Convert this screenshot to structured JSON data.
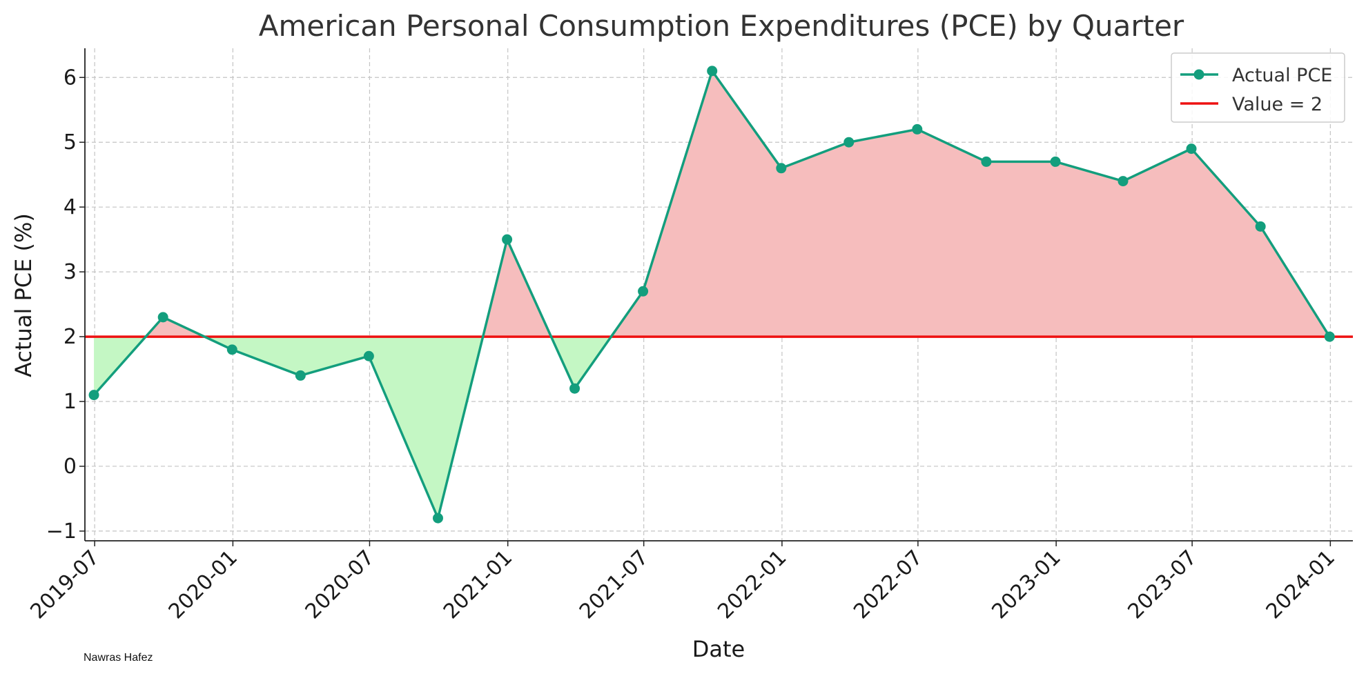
{
  "chart_data": {
    "type": "line",
    "title": "American Personal Consumption Expenditures (PCE) by Quarter",
    "xlabel": "Date",
    "ylabel": "Actual PCE (%)",
    "x": [
      "2019-06-30",
      "2019-09-30",
      "2019-12-31",
      "2020-03-31",
      "2020-06-30",
      "2020-09-30",
      "2020-12-31",
      "2021-03-31",
      "2021-06-30",
      "2021-09-30",
      "2021-12-31",
      "2022-03-31",
      "2022-06-30",
      "2022-09-30",
      "2022-12-31",
      "2023-03-31",
      "2023-06-30",
      "2023-09-30",
      "2023-12-31"
    ],
    "series": [
      {
        "name": "Actual PCE",
        "color": "#139e7d",
        "values": [
          1.1,
          2.3,
          1.8,
          1.4,
          1.7,
          -0.8,
          3.5,
          1.2,
          2.7,
          6.1,
          4.6,
          5.0,
          5.2,
          4.7,
          4.7,
          4.4,
          4.9,
          3.7,
          2.0
        ]
      }
    ],
    "reference_line": {
      "label": "Value = 2",
      "value": 2,
      "color": "#ee1111"
    },
    "fill_above_color": "#f6bdbd",
    "fill_below_color": "#c4f7c4",
    "x_ticks": [
      "2019-07",
      "2020-01",
      "2020-07",
      "2021-01",
      "2021-07",
      "2022-01",
      "2022-07",
      "2023-01",
      "2023-07",
      "2024-01"
    ],
    "y_ticks": [
      "−1",
      "0",
      "1",
      "2",
      "3",
      "4",
      "5",
      "6"
    ],
    "ylim": [
      -1.15,
      6.45
    ],
    "xlim": [
      "2019-06-18",
      "2024-01-31"
    ],
    "grid": true,
    "legend_position": "top-right"
  },
  "author": "Nawras Hafez"
}
